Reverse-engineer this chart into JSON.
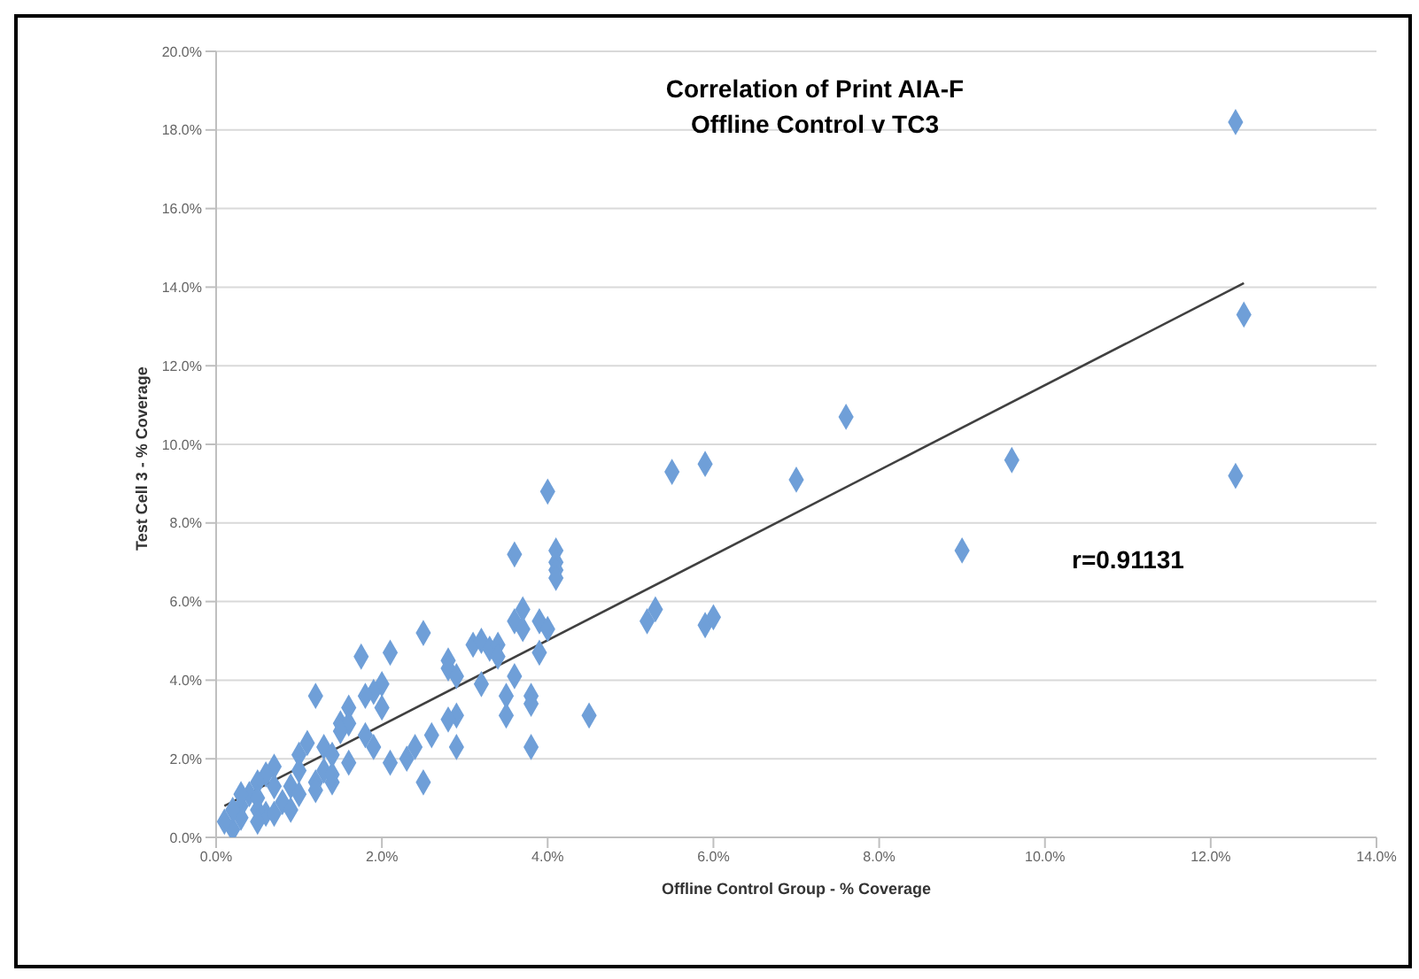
{
  "chart_data": {
    "type": "scatter",
    "title": "Correlation of Print AIA-F\nOffline Control v TC3",
    "xlabel": "Offline Control Group  - % Coverage",
    "ylabel": "Test Cell 3 - % Coverage",
    "annotations": [
      "r=0.91131"
    ],
    "marker": "diamond",
    "grid": "y",
    "xlim": [
      0,
      14
    ],
    "xticks": [
      {
        "value": 0,
        "label": "0.0%"
      },
      {
        "value": 2,
        "label": "2.0%"
      },
      {
        "value": 4,
        "label": "4.0%"
      },
      {
        "value": 6,
        "label": "6.0%"
      },
      {
        "value": 8,
        "label": "8.0%"
      },
      {
        "value": 10,
        "label": "10.0%"
      },
      {
        "value": 12,
        "label": "12.0%"
      },
      {
        "value": 14,
        "label": "14.0%"
      }
    ],
    "ylim": [
      0,
      20
    ],
    "yticks": [
      {
        "value": 0,
        "label": "0.0%"
      },
      {
        "value": 2,
        "label": "2.0%"
      },
      {
        "value": 4,
        "label": "4.0%"
      },
      {
        "value": 6,
        "label": "6.0%"
      },
      {
        "value": 8,
        "label": "8.0%"
      },
      {
        "value": 10,
        "label": "10.0%"
      },
      {
        "value": 12,
        "label": "12.0%"
      },
      {
        "value": 14,
        "label": "14.0%"
      },
      {
        "value": 16,
        "label": "16.0%"
      },
      {
        "value": 18,
        "label": "18.0%"
      },
      {
        "value": 20,
        "label": "20.0%"
      }
    ],
    "series": [
      {
        "color": "#6f9fd8",
        "x": [
          12.3,
          12.4,
          7.6,
          9.6,
          12.3,
          7.0,
          9.0,
          5.9,
          5.5,
          4.0,
          3.6,
          4.1,
          4.1,
          4.1,
          4.1,
          3.7,
          3.6,
          3.7,
          3.9,
          4.0,
          3.9,
          5.2,
          5.3,
          5.9,
          6.0,
          2.5,
          1.75,
          2.1,
          1.2,
          2.8,
          2.8,
          2.9,
          3.1,
          3.2,
          3.3,
          3.4,
          3.4,
          3.2,
          3.6,
          3.5,
          3.5,
          3.8,
          3.8,
          3.8,
          4.5,
          2.9,
          2.8,
          2.9,
          2.6,
          2.5,
          2.4,
          2.3,
          2.1,
          2.0,
          2.0,
          1.9,
          1.8,
          1.6,
          1.5,
          1.6,
          1.5,
          1.8,
          1.9,
          1.6,
          1.1,
          1.0,
          1.3,
          1.4,
          1.3,
          1.4,
          1.2,
          1.0,
          0.9,
          0.7,
          0.6,
          0.5,
          0.7,
          1.0,
          0.8,
          0.6,
          0.5,
          0.3,
          0.3,
          0.2,
          0.4,
          0.3,
          0.5,
          0.5,
          0.7,
          0.9,
          1.2,
          1.4,
          0.2,
          0.1
        ],
        "values": [
          18.2,
          13.3,
          10.7,
          9.6,
          9.2,
          9.1,
          7.3,
          9.5,
          9.3,
          8.8,
          7.2,
          7.3,
          7.0,
          6.8,
          6.6,
          5.8,
          5.5,
          5.3,
          5.5,
          5.3,
          4.7,
          5.5,
          5.8,
          5.4,
          5.6,
          5.2,
          4.6,
          4.7,
          3.6,
          4.5,
          4.3,
          4.1,
          4.9,
          5.0,
          4.8,
          4.9,
          4.6,
          3.9,
          4.1,
          3.6,
          3.1,
          3.6,
          3.4,
          2.3,
          3.1,
          3.1,
          3.0,
          2.3,
          2.6,
          1.4,
          2.3,
          2.0,
          1.9,
          3.3,
          3.9,
          3.7,
          3.6,
          3.3,
          2.9,
          2.9,
          2.7,
          2.6,
          2.3,
          1.9,
          2.4,
          2.1,
          2.3,
          2.1,
          1.7,
          1.4,
          1.4,
          1.7,
          1.3,
          1.8,
          1.6,
          1.4,
          1.3,
          1.1,
          0.9,
          0.6,
          0.7,
          0.8,
          0.5,
          0.2,
          1.1,
          1.1,
          1.0,
          0.4,
          0.6,
          0.7,
          1.2,
          1.6,
          0.7,
          0.4
        ]
      },
      {
        "type": "line",
        "marker": "none",
        "color": "#404040",
        "x": [
          0.1,
          12.4
        ],
        "values": [
          0.8,
          14.1
        ]
      }
    ]
  }
}
